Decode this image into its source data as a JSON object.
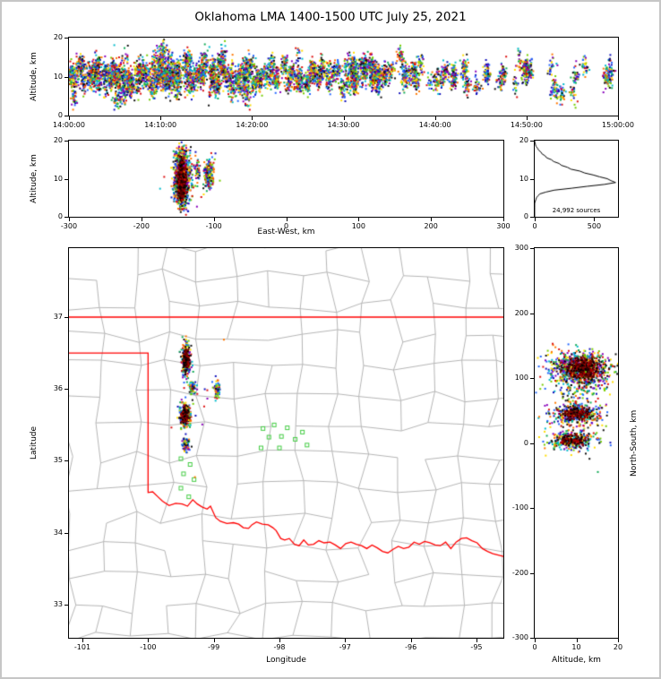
{
  "title": "Oklahoma LMA 1400-1500 UTC July 25, 2021",
  "palette": [
    "#dd1111",
    "#ff7700",
    "#ffdd00",
    "#77cc00",
    "#11aa55",
    "#00bbcc",
    "#2266ff",
    "#1111bb",
    "#8800bb",
    "#111111"
  ],
  "dark_palette": [
    "#000000",
    "#1a0000",
    "#4d0000",
    "#800000",
    "#b30000"
  ],
  "chart_data": [
    {
      "id": "time-height",
      "type": "scatter",
      "ylabel": "Altitude, km",
      "xlim": [
        0,
        3600
      ],
      "ylim": [
        0,
        20
      ],
      "xticks": {
        "values": [
          0,
          600,
          1200,
          1800,
          2400,
          3000,
          3600
        ],
        "labels": [
          "14:00:00",
          "14:10:00",
          "14:20:00",
          "14:30:00",
          "14:40:00",
          "14:50:00",
          "15:00:00"
        ]
      },
      "yticks": {
        "values": [
          0,
          10,
          20
        ],
        "labels": [
          "0",
          "10",
          "20"
        ]
      },
      "point_model": {
        "seed": 9,
        "flashes": [
          {
            "t_range": [
              0,
              1250
            ],
            "n": 130
          },
          {
            "t_range": [
              1250,
              2200
            ],
            "n": 62
          },
          {
            "t_range": [
              2200,
              3580
            ],
            "n": 40
          }
        ],
        "pts_per_flash": [
          12,
          55
        ],
        "time_spread_s": 12,
        "alt_mean": 10.4,
        "alt_mean_sd": 2.1,
        "alt_sd": 1.35,
        "alt_clip": [
          1.5,
          19.5
        ]
      }
    },
    {
      "id": "east-west-height",
      "type": "scatter",
      "xlabel": "East-West, km",
      "ylabel": "Altitude, km",
      "xlim": [
        -300,
        300
      ],
      "ylim": [
        0,
        20
      ],
      "xticks": {
        "values": [
          -300,
          -200,
          -100,
          0,
          100,
          200,
          300
        ],
        "labels": [
          "-300",
          "-200",
          "-100",
          "0",
          "100",
          "200",
          "300"
        ]
      },
      "yticks": {
        "values": [
          0,
          10,
          20
        ],
        "labels": [
          "0",
          "10",
          "20"
        ]
      },
      "seed": 22,
      "clusters": [
        {
          "cx": -144,
          "cy": 10,
          "sx": 5,
          "sy": 3.4,
          "n": 1300
        },
        {
          "cx": -144,
          "cy": 9.5,
          "sx": 2.6,
          "sy": 2.2,
          "n": 700,
          "dark": true
        },
        {
          "cx": -106,
          "cy": 11,
          "sx": 3.5,
          "sy": 1.9,
          "n": 170
        },
        {
          "cx": -122,
          "cy": 12,
          "sx": 2,
          "sy": 1.4,
          "n": 40
        },
        {
          "cx": -125,
          "cy": 10,
          "sx": 18,
          "sy": 3.5,
          "n": 60
        }
      ]
    },
    {
      "id": "altitude-histogram",
      "type": "line",
      "annotation": "24,992 sources",
      "xlim": [
        0,
        700
      ],
      "ylim": [
        0,
        20
      ],
      "xticks": {
        "values": [
          0,
          500
        ],
        "labels": [
          "0",
          "500"
        ]
      },
      "yticks": {
        "values": [
          0,
          10,
          20
        ],
        "labels": [
          "0",
          "10",
          "20"
        ]
      },
      "profile_alt_step": 0.5,
      "profile_counts": [
        0,
        0,
        0,
        0,
        0,
        0,
        0,
        0,
        3,
        10,
        14,
        28,
        42,
        95,
        165,
        310,
        440,
        585,
        680,
        640,
        610,
        545,
        490,
        420,
        380,
        305,
        275,
        225,
        205,
        160,
        140,
        100,
        88,
        62,
        52,
        33,
        24,
        11,
        6,
        2,
        0
      ]
    },
    {
      "id": "map",
      "type": "scatter",
      "xlabel": "Longitude",
      "ylabel": "Latitude",
      "xlim": [
        -101.2046,
        -94.5906
      ],
      "ylim": [
        32.5389,
        37.9595
      ],
      "xticks": {
        "values": [
          -101,
          -100,
          -99,
          -98,
          -97,
          -96,
          -95
        ],
        "labels": [
          "-101",
          "-100",
          "-99",
          "-98",
          "-97",
          "-96",
          "-95"
        ]
      },
      "yticks": {
        "values": [
          33,
          34,
          35,
          36,
          37
        ],
        "labels": [
          "33",
          "34",
          "35",
          "36",
          "37"
        ]
      },
      "state_border_color": "#ff0000",
      "county_line_color": "#b5b5b5",
      "station_color": "#44cc44",
      "county_grid": {
        "seed": 7,
        "lon_step": 0.5,
        "lat_step": 0.42,
        "jitter": 0.22,
        "drop": 0.1
      },
      "state_border": [
        [
          [
            -101.2046,
            37.0
          ],
          [
            -94.5906,
            37.0
          ]
        ],
        [
          [
            -101.2046,
            36.5
          ],
          [
            -100.0,
            36.5
          ],
          [
            -100.0,
            34.56
          ],
          [
            -99.93,
            34.57
          ],
          [
            -99.85,
            34.5
          ],
          [
            -99.78,
            34.44
          ],
          [
            -99.68,
            34.38
          ],
          [
            -99.58,
            34.41
          ],
          [
            -99.48,
            34.4
          ],
          [
            -99.4,
            34.37
          ],
          [
            -99.32,
            34.46
          ],
          [
            -99.25,
            34.4
          ],
          [
            -99.18,
            34.36
          ],
          [
            -99.1,
            34.33
          ],
          [
            -99.05,
            34.37
          ],
          [
            -98.97,
            34.21
          ],
          [
            -98.9,
            34.16
          ],
          [
            -98.8,
            34.13
          ],
          [
            -98.7,
            34.14
          ],
          [
            -98.62,
            34.12
          ],
          [
            -98.55,
            34.07
          ],
          [
            -98.47,
            34.06
          ],
          [
            -98.42,
            34.11
          ],
          [
            -98.35,
            34.15
          ],
          [
            -98.26,
            34.12
          ],
          [
            -98.17,
            34.11
          ],
          [
            -98.1,
            34.07
          ],
          [
            -98.05,
            34.03
          ],
          [
            -97.98,
            33.92
          ],
          [
            -97.92,
            33.9
          ],
          [
            -97.85,
            33.92
          ],
          [
            -97.77,
            33.84
          ],
          [
            -97.7,
            33.82
          ],
          [
            -97.63,
            33.9
          ],
          [
            -97.56,
            33.83
          ],
          [
            -97.48,
            33.84
          ],
          [
            -97.4,
            33.89
          ],
          [
            -97.32,
            33.86
          ],
          [
            -97.23,
            33.87
          ],
          [
            -97.15,
            33.83
          ],
          [
            -97.07,
            33.78
          ],
          [
            -96.99,
            33.85
          ],
          [
            -96.91,
            33.87
          ],
          [
            -96.83,
            33.84
          ],
          [
            -96.75,
            33.82
          ],
          [
            -96.67,
            33.78
          ],
          [
            -96.59,
            33.83
          ],
          [
            -96.51,
            33.79
          ],
          [
            -96.43,
            33.74
          ],
          [
            -96.35,
            33.72
          ],
          [
            -96.27,
            33.77
          ],
          [
            -96.19,
            33.81
          ],
          [
            -96.11,
            33.78
          ],
          [
            -96.03,
            33.8
          ],
          [
            -95.95,
            33.87
          ],
          [
            -95.87,
            33.84
          ],
          [
            -95.79,
            33.88
          ],
          [
            -95.71,
            33.86
          ],
          [
            -95.63,
            33.83
          ],
          [
            -95.55,
            33.82
          ],
          [
            -95.47,
            33.87
          ],
          [
            -95.39,
            33.78
          ],
          [
            -95.31,
            33.87
          ],
          [
            -95.23,
            33.92
          ],
          [
            -95.15,
            33.93
          ],
          [
            -95.07,
            33.89
          ],
          [
            -94.99,
            33.86
          ],
          [
            -94.91,
            33.78
          ],
          [
            -94.83,
            33.74
          ],
          [
            -94.75,
            33.71
          ],
          [
            -94.67,
            33.69
          ],
          [
            -94.59,
            33.67
          ]
        ]
      ],
      "stations": [
        [
          -98.25,
          35.45
        ],
        [
          -98.08,
          35.5
        ],
        [
          -97.88,
          35.46
        ],
        [
          -98.16,
          35.33
        ],
        [
          -97.97,
          35.34
        ],
        [
          -97.76,
          35.3
        ],
        [
          -98.28,
          35.18
        ],
        [
          -97.65,
          35.4
        ],
        [
          -97.58,
          35.22
        ],
        [
          -98.0,
          35.18
        ],
        [
          -99.5,
          35.03
        ],
        [
          -99.36,
          34.95
        ],
        [
          -99.46,
          34.82
        ],
        [
          -99.3,
          34.74
        ],
        [
          -99.5,
          34.62
        ],
        [
          -99.38,
          34.5
        ]
      ],
      "seed": 33,
      "clusters": [
        {
          "cx": -99.42,
          "cy": 36.4,
          "sx": 0.035,
          "sy": 0.12,
          "n": 260
        },
        {
          "cx": -99.42,
          "cy": 36.42,
          "sx": 0.02,
          "sy": 0.08,
          "n": 140,
          "dark": true
        },
        {
          "cx": -99.33,
          "cy": 36.02,
          "sx": 0.025,
          "sy": 0.045,
          "n": 60
        },
        {
          "cx": -98.95,
          "cy": 36.0,
          "sx": 0.02,
          "sy": 0.06,
          "n": 70
        },
        {
          "cx": -99.44,
          "cy": 35.64,
          "sx": 0.045,
          "sy": 0.09,
          "n": 260
        },
        {
          "cx": -99.44,
          "cy": 35.63,
          "sx": 0.025,
          "sy": 0.05,
          "n": 140,
          "dark": true
        },
        {
          "cx": -99.42,
          "cy": 35.22,
          "sx": 0.03,
          "sy": 0.05,
          "n": 70
        },
        {
          "cx": -99.25,
          "cy": 35.95,
          "sx": 0.2,
          "sy": 0.4,
          "n": 20
        }
      ]
    },
    {
      "id": "north-south-height",
      "type": "scatter",
      "xlabel": "Altitude, km",
      "ylabel": "North-South, km",
      "xlim": [
        0,
        20
      ],
      "ylim": [
        -300,
        300
      ],
      "xticks": {
        "values": [
          0,
          10,
          20
        ],
        "labels": [
          "0",
          "10",
          "20"
        ]
      },
      "yticks": {
        "values": [
          300,
          200,
          100,
          0,
          -100,
          -200,
          -300
        ],
        "labels": [
          "300",
          "200",
          "100",
          "0",
          "-100",
          "-200",
          "-300"
        ]
      },
      "seed": 44,
      "clusters": [
        {
          "cx": 11,
          "cy": 113,
          "sx": 3.6,
          "sy": 13,
          "n": 800
        },
        {
          "cx": 11.5,
          "cy": 114,
          "sx": 2.2,
          "sy": 9,
          "n": 400,
          "dark": true
        },
        {
          "cx": 10,
          "cy": 45,
          "sx": 3,
          "sy": 9,
          "n": 380
        },
        {
          "cx": 10,
          "cy": 45,
          "sx": 1.8,
          "sy": 6,
          "n": 180,
          "dark": true
        },
        {
          "cx": 9,
          "cy": 4,
          "sx": 2.8,
          "sy": 7,
          "n": 300
        },
        {
          "cx": 9,
          "cy": 4,
          "sx": 1.6,
          "sy": 4,
          "n": 140,
          "dark": true
        },
        {
          "cx": 11,
          "cy": 78,
          "sx": 3,
          "sy": 6,
          "n": 60
        },
        {
          "cx": 10,
          "cy": 60,
          "sx": 4.5,
          "sy": 45,
          "n": 70
        }
      ]
    }
  ]
}
